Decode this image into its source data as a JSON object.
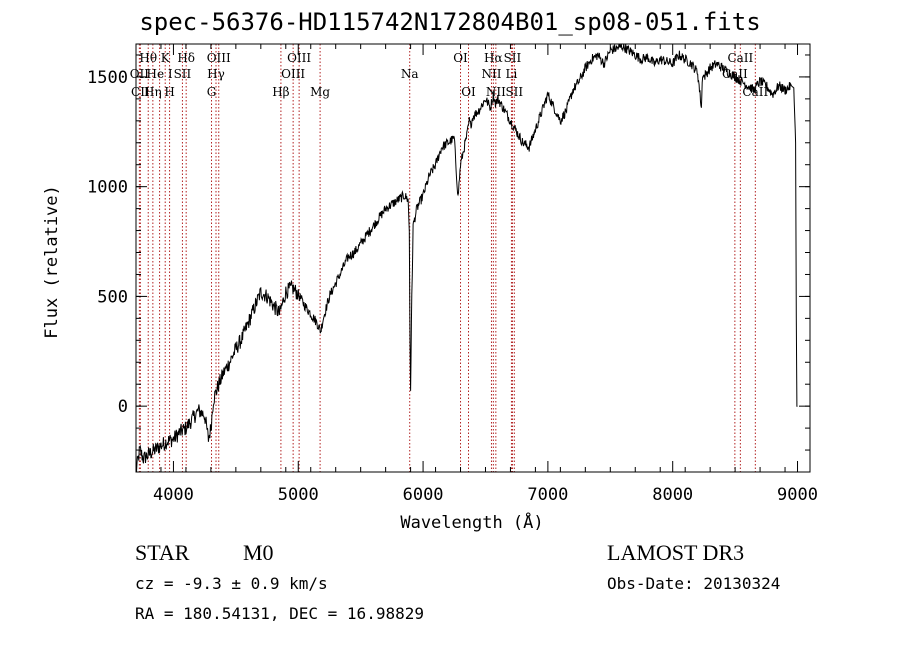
{
  "chart_data": {
    "type": "line",
    "title": "spec-56376-HD115742N172804B01_sp08-051.fits",
    "xlabel": "Wavelength (Å)",
    "ylabel": "Flux (relative)",
    "xlim": [
      3700,
      9100
    ],
    "ylim": [
      -300,
      1650
    ],
    "xticks": [
      4000,
      5000,
      6000,
      7000,
      8000,
      9000
    ],
    "xticks_minor_step": 200,
    "yticks": [
      0,
      500,
      1000,
      1500
    ],
    "yticks_minor_step": 100,
    "series": [
      {
        "name": "flux",
        "x": [
          3700,
          3730,
          3760,
          3800,
          3850,
          3900,
          3950,
          4000,
          4050,
          4100,
          4150,
          4200,
          4250,
          4280,
          4300,
          4320,
          4350,
          4400,
          4450,
          4500,
          4550,
          4600,
          4650,
          4700,
          4750,
          4800,
          4850,
          4880,
          4900,
          4950,
          5000,
          5050,
          5100,
          5150,
          5180,
          5200,
          5250,
          5300,
          5350,
          5400,
          5450,
          5500,
          5550,
          5600,
          5650,
          5700,
          5750,
          5800,
          5850,
          5880,
          5890,
          5895,
          5900,
          5910,
          5920,
          5950,
          6000,
          6050,
          6100,
          6150,
          6200,
          6250,
          6280,
          6300,
          6330,
          6350,
          6370,
          6380,
          6400,
          6450,
          6500,
          6540,
          6563,
          6580,
          6600,
          6650,
          6700,
          6750,
          6800,
          6850,
          6900,
          6950,
          7000,
          7050,
          7100,
          7150,
          7200,
          7250,
          7300,
          7350,
          7400,
          7450,
          7500,
          7550,
          7600,
          7650,
          7700,
          7750,
          7800,
          7850,
          7900,
          7950,
          8000,
          8050,
          8100,
          8150,
          8200,
          8230,
          8240,
          8250,
          8300,
          8350,
          8400,
          8450,
          8500,
          8550,
          8600,
          8650,
          8700,
          8750,
          8800,
          8850,
          8900,
          8950,
          8970,
          8985,
          8990,
          8995,
          9000
        ],
        "values": [
          -300,
          -200,
          -240,
          -220,
          -200,
          -180,
          -160,
          -150,
          -120,
          -100,
          -60,
          -20,
          -40,
          -150,
          -100,
          30,
          80,
          150,
          200,
          260,
          310,
          380,
          450,
          520,
          500,
          460,
          420,
          480,
          520,
          540,
          510,
          460,
          420,
          380,
          340,
          400,
          500,
          560,
          620,
          680,
          700,
          740,
          780,
          820,
          860,
          900,
          920,
          940,
          960,
          940,
          800,
          300,
          80,
          500,
          820,
          900,
          960,
          1050,
          1100,
          1180,
          1200,
          1220,
          950,
          1100,
          1180,
          1230,
          1300,
          1280,
          1320,
          1350,
          1400,
          1360,
          1420,
          1380,
          1400,
          1350,
          1300,
          1250,
          1200,
          1180,
          1260,
          1340,
          1420,
          1360,
          1300,
          1350,
          1440,
          1480,
          1540,
          1580,
          1600,
          1560,
          1620,
          1630,
          1640,
          1620,
          1600,
          1580,
          1590,
          1560,
          1580,
          1570,
          1560,
          1600,
          1580,
          1560,
          1520,
          1360,
          1520,
          1500,
          1540,
          1560,
          1540,
          1520,
          1500,
          1480,
          1460,
          1440,
          1480,
          1460,
          1420,
          1460,
          1440,
          1460,
          1450,
          1200,
          400,
          0,
          0
        ]
      }
    ],
    "line_markers": [
      {
        "label": "Hθ",
        "x": 3798,
        "row": 0
      },
      {
        "label": "OII",
        "x": 3727,
        "row": 1
      },
      {
        "label": "CII",
        "x": 3735,
        "row": 2
      },
      {
        "label": "K",
        "x": 3934,
        "row": 0
      },
      {
        "label": "He I",
        "x": 3889,
        "row": 1
      },
      {
        "label": "Hη",
        "x": 3835,
        "row": 2
      },
      {
        "label": "Hδ",
        "x": 4102,
        "row": 0
      },
      {
        "label": "SII",
        "x": 4072,
        "row": 1
      },
      {
        "label": "H",
        "x": 3969,
        "row": 2
      },
      {
        "label": "OIII",
        "x": 4363,
        "row": 0
      },
      {
        "label": "Hγ",
        "x": 4341,
        "row": 1
      },
      {
        "label": "G",
        "x": 4305,
        "row": 2
      },
      {
        "label": "OIII",
        "x": 5007,
        "row": 0
      },
      {
        "label": "OIII",
        "x": 4959,
        "row": 1
      },
      {
        "label": "Hβ",
        "x": 4861,
        "row": 2
      },
      {
        "label": "Mg",
        "x": 5175,
        "row": 2
      },
      {
        "label": "Na",
        "x": 5893,
        "row": 1
      },
      {
        "label": "OI",
        "x": 6300,
        "row": 0
      },
      {
        "label": "OI",
        "x": 6364,
        "row": 2
      },
      {
        "label": "Hα",
        "x": 6563,
        "row": 0
      },
      {
        "label": "NII",
        "x": 6548,
        "row": 1
      },
      {
        "label": "NII",
        "x": 6583,
        "row": 2
      },
      {
        "label": "SII",
        "x": 6716,
        "row": 0
      },
      {
        "label": "Li",
        "x": 6708,
        "row": 1
      },
      {
        "label": "SII",
        "x": 6731,
        "row": 2
      },
      {
        "label": "CaII",
        "x": 8542,
        "row": 0
      },
      {
        "label": "CaII",
        "x": 8498,
        "row": 1
      },
      {
        "label": "CaII",
        "x": 8662,
        "row": 2
      }
    ]
  },
  "info": {
    "class": "STAR",
    "subclass": "M0",
    "survey": "LAMOST DR3",
    "cz": "cz = -9.3 ± 0.9 km/s",
    "obs_date": "Obs-Date: 20130324",
    "coords": "RA = 180.54131, DEC =  16.98829"
  }
}
